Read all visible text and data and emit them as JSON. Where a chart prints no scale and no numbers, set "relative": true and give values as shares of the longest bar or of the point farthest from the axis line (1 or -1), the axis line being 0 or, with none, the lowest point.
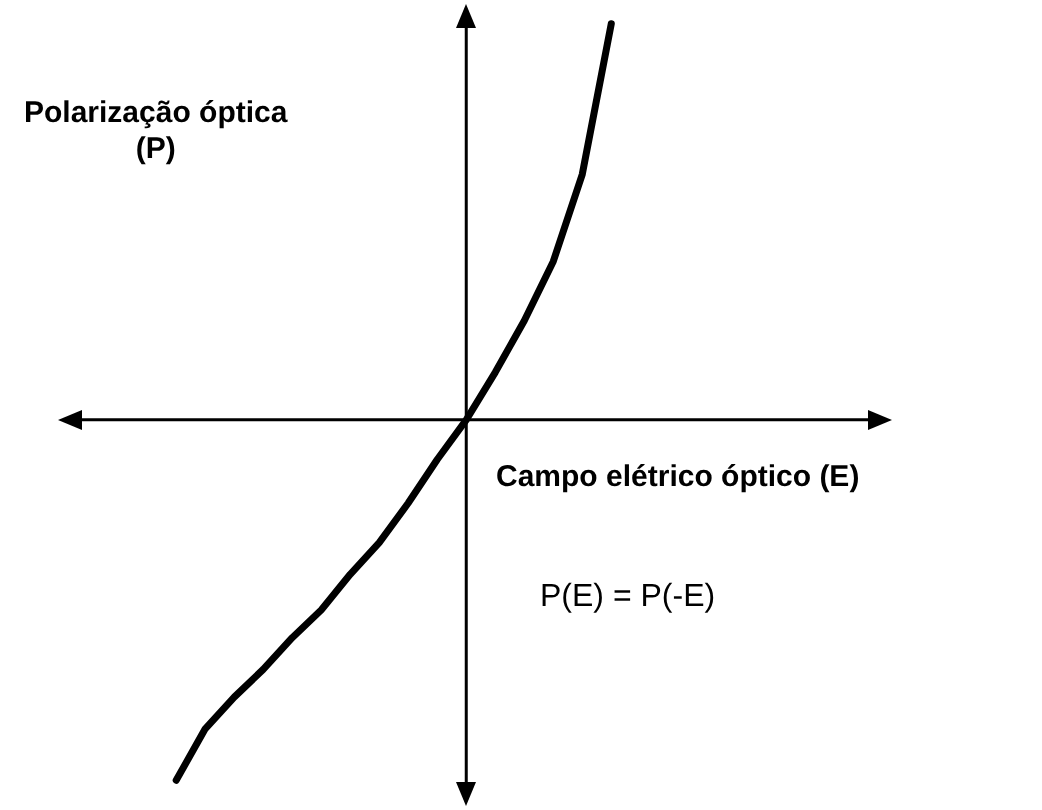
{
  "chart_data": {
    "type": "line",
    "relative": true,
    "marker": "none",
    "line_style": "solid",
    "ylabel": "Polarização óptica\n(P)",
    "xlabel": "Campo elétrico óptico (E)",
    "annotations": [
      "P(E) = P(-E)"
    ],
    "categories": [
      null,
      null,
      null,
      null,
      null,
      null,
      null,
      null,
      null,
      null,
      null,
      null,
      null,
      null,
      null,
      null
    ],
    "series": [
      {
        "color": "#000000",
        "values": [
          -0.91,
          -0.78,
          -0.7,
          -0.63,
          -0.55,
          -0.48,
          -0.39,
          -0.31,
          -0.21,
          -0.1,
          0,
          0.12,
          0.25,
          0.4,
          0.62,
          1.0
        ]
      }
    ]
  }
}
